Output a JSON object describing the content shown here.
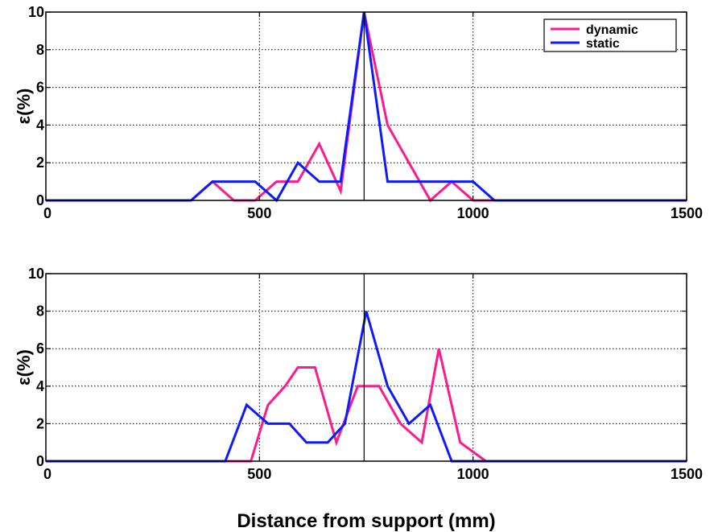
{
  "chart_data": [
    {
      "type": "line",
      "xlim": [
        0,
        1500
      ],
      "ylim": [
        0,
        10
      ],
      "xticks": [
        "0",
        "500",
        "1000",
        "1500"
      ],
      "yticks": [
        "0",
        "2",
        "4",
        "6",
        "8",
        "10"
      ],
      "ylabel": "ε(%)",
      "grid": true,
      "vline_x": 745,
      "legend": {
        "position": "top-right",
        "entries": [
          "dynamic",
          "static"
        ]
      },
      "series": [
        {
          "name": "dynamic",
          "color": "#ff1a8c",
          "x": [
            0,
            340,
            390,
            440,
            490,
            540,
            590,
            640,
            690,
            745,
            800,
            850,
            900,
            950,
            1000,
            1050,
            1500
          ],
          "y": [
            0,
            0,
            1,
            0,
            0,
            1,
            1,
            3,
            0.5,
            10,
            4,
            2,
            0,
            1,
            0,
            0,
            0
          ]
        },
        {
          "name": "static",
          "color": "#0d1aff",
          "x": [
            0,
            340,
            390,
            440,
            490,
            540,
            590,
            640,
            690,
            745,
            800,
            850,
            900,
            950,
            1000,
            1050,
            1500
          ],
          "y": [
            0,
            0,
            1,
            1,
            1,
            0,
            2,
            1,
            1,
            10,
            1,
            1,
            1,
            1,
            1,
            0,
            0
          ]
        }
      ]
    },
    {
      "type": "line",
      "xlim": [
        0,
        1500
      ],
      "ylim": [
        0,
        10
      ],
      "xticks": [
        "0",
        "500",
        "1000",
        "1500"
      ],
      "yticks": [
        "0",
        "2",
        "4",
        "6",
        "8",
        "10"
      ],
      "ylabel": "ε(%)",
      "xlabel": "Distance from support (mm)",
      "grid": true,
      "vline_x": 745,
      "series": [
        {
          "name": "dynamic",
          "color": "#ff1a8c",
          "x": [
            0,
            480,
            520,
            560,
            590,
            630,
            680,
            730,
            780,
            830,
            880,
            920,
            970,
            1030,
            1500
          ],
          "y": [
            0,
            0,
            3,
            4,
            5,
            5,
            1,
            4,
            4,
            2,
            1,
            6,
            1,
            0,
            0
          ]
        },
        {
          "name": "static",
          "color": "#0d1aff",
          "x": [
            0,
            420,
            470,
            520,
            570,
            610,
            660,
            700,
            750,
            800,
            850,
            900,
            950,
            1500
          ],
          "y": [
            0,
            0,
            3,
            2,
            2,
            1,
            1,
            2,
            8,
            4,
            2,
            3,
            0,
            0
          ]
        }
      ]
    }
  ]
}
